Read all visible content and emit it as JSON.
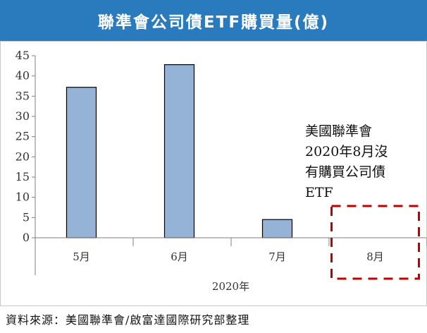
{
  "title": "聯準會公司債ETF購買量(億)",
  "colors": {
    "title_bg": "#2a7bbd",
    "bar_fill": "#95b3d7",
    "bar_stroke": "#000000",
    "highlight_box": "#c00000"
  },
  "chart_data": {
    "type": "bar",
    "categories": [
      "5月",
      "6月",
      "7月",
      "8月"
    ],
    "values": [
      37.2,
      42.8,
      4.5,
      0
    ],
    "xlabel": "2020年",
    "ylabel": "",
    "ylim": [
      0,
      45
    ],
    "yticks": [
      0,
      5,
      10,
      15,
      20,
      25,
      30,
      35,
      40,
      45
    ],
    "grid": false,
    "highlight_category": "8月"
  },
  "annotation": "美國聯準會\n2020年8月沒\n有購買公司債\nETF",
  "source": "資料來源：美國聯準會/啟富達國際研究部整理"
}
